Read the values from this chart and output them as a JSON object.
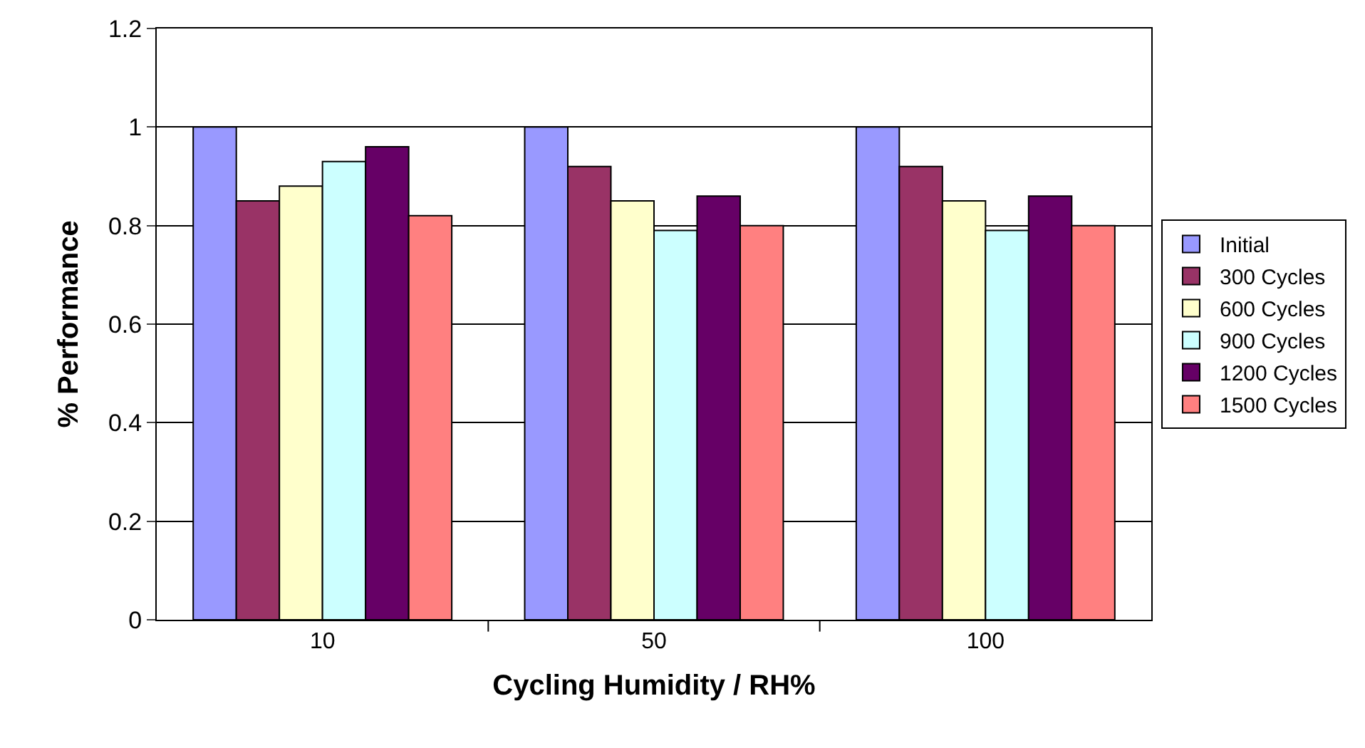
{
  "chart_data": {
    "type": "bar",
    "xlabel": "Cycling Humidity / RH%",
    "ylabel": "% Performance",
    "categories": [
      "10",
      "50",
      "100"
    ],
    "series": [
      {
        "name": "Initial",
        "color": "#9999ff",
        "values": [
          1,
          1,
          1
        ]
      },
      {
        "name": "300 Cycles",
        "color": "#993366",
        "values": [
          0.85,
          0.92,
          0.92
        ]
      },
      {
        "name": "600 Cycles",
        "color": "#ffffcc",
        "values": [
          0.88,
          0.85,
          0.85
        ]
      },
      {
        "name": "900 Cycles",
        "color": "#ccffff",
        "values": [
          0.93,
          0.79,
          0.79
        ]
      },
      {
        "name": "1200 Cycles",
        "color": "#660066",
        "values": [
          0.96,
          0.86,
          0.86
        ]
      },
      {
        "name": "1500 Cycles",
        "color": "#ff8080",
        "values": [
          0.82,
          0.8,
          0.8
        ]
      }
    ],
    "ylim": [
      0,
      1.2
    ],
    "yticks": [
      0,
      0.2,
      0.4,
      0.6,
      0.8,
      1,
      1.2
    ],
    "grid": "y",
    "legend": "right"
  }
}
